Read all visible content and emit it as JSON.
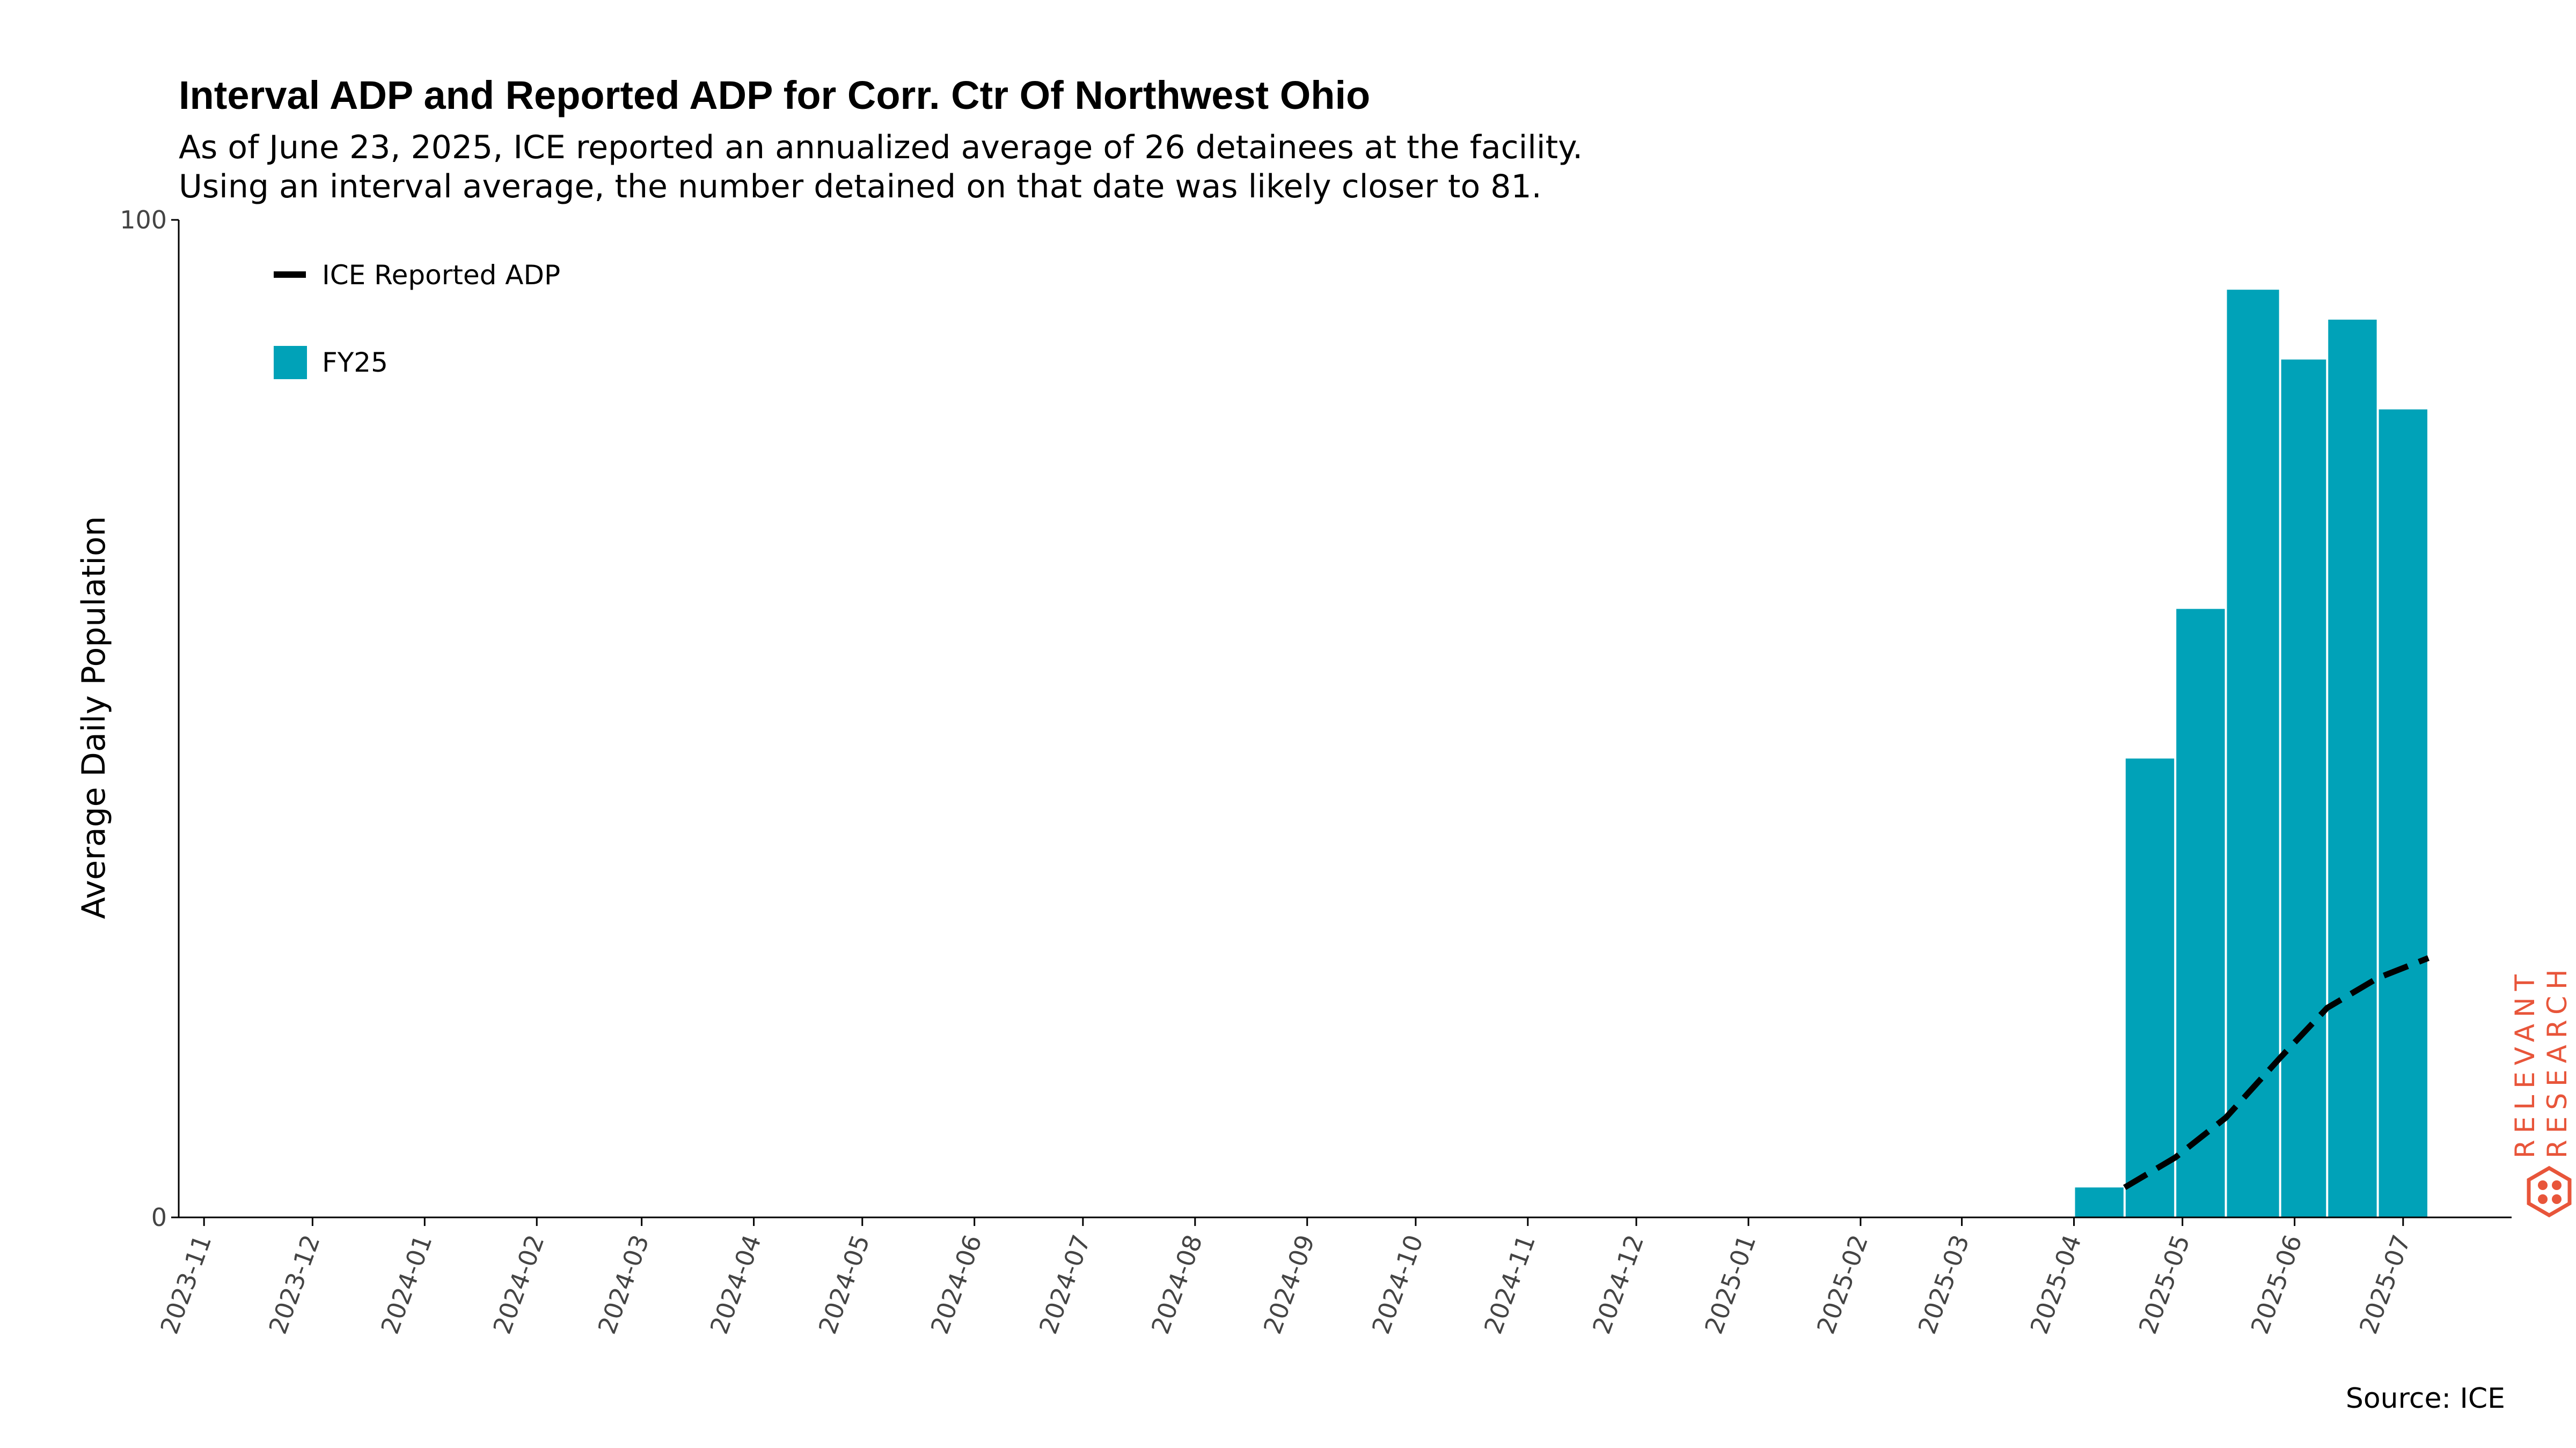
{
  "chart_data": {
    "type": "bar",
    "title": "Interval ADP and Reported ADP for Corr. Ctr Of Northwest Ohio",
    "subtitle": [
      "As of June 23, 2025, ICE reported an annualized average of 26 detainees at the facility.",
      "Using an interval average, the number detained on that date was likely closer to 81."
    ],
    "ylabel": "Average Daily Population",
    "xlabel": "",
    "ylim": [
      0,
      100
    ],
    "yticks": [
      0,
      100
    ],
    "xlim": [
      "2023-10-25",
      "2025-07-31"
    ],
    "x_ticks": [
      "2023-11",
      "2023-12",
      "2024-01",
      "2024-02",
      "2024-03",
      "2024-04",
      "2024-05",
      "2024-06",
      "2024-07",
      "2024-08",
      "2024-09",
      "2024-10",
      "2024-11",
      "2024-12",
      "2025-01",
      "2025-02",
      "2025-03",
      "2025-04",
      "2025-05",
      "2025-06",
      "2025-07"
    ],
    "bars": {
      "name": "FY25",
      "color": "#00A2B8",
      "intervals": [
        {
          "start": "2025-04-01",
          "end": "2025-04-15",
          "value": 3
        },
        {
          "start": "2025-04-15",
          "end": "2025-04-29",
          "value": 46
        },
        {
          "start": "2025-04-29",
          "end": "2025-05-13",
          "value": 61
        },
        {
          "start": "2025-05-13",
          "end": "2025-05-28",
          "value": 93
        },
        {
          "start": "2025-05-28",
          "end": "2025-06-10",
          "value": 86
        },
        {
          "start": "2025-06-10",
          "end": "2025-06-24",
          "value": 90
        },
        {
          "start": "2025-06-24",
          "end": "2025-07-08",
          "value": 81
        }
      ]
    },
    "line": {
      "name": "ICE Reported ADP",
      "color": "#000000",
      "style": "dashed",
      "points": [
        {
          "x": "2025-04-15",
          "y": 3
        },
        {
          "x": "2025-04-29",
          "y": 6
        },
        {
          "x": "2025-05-13",
          "y": 10
        },
        {
          "x": "2025-05-28",
          "y": 16
        },
        {
          "x": "2025-06-10",
          "y": 21
        },
        {
          "x": "2025-06-24",
          "y": 24
        },
        {
          "x": "2025-07-08",
          "y": 26
        }
      ]
    },
    "legend": {
      "placement": "top-left"
    },
    "grid": false,
    "source": "Source: ICE"
  },
  "logo": {
    "line1": "RELEVANT",
    "line2": "RESEARCH",
    "color": "#E8553A"
  }
}
